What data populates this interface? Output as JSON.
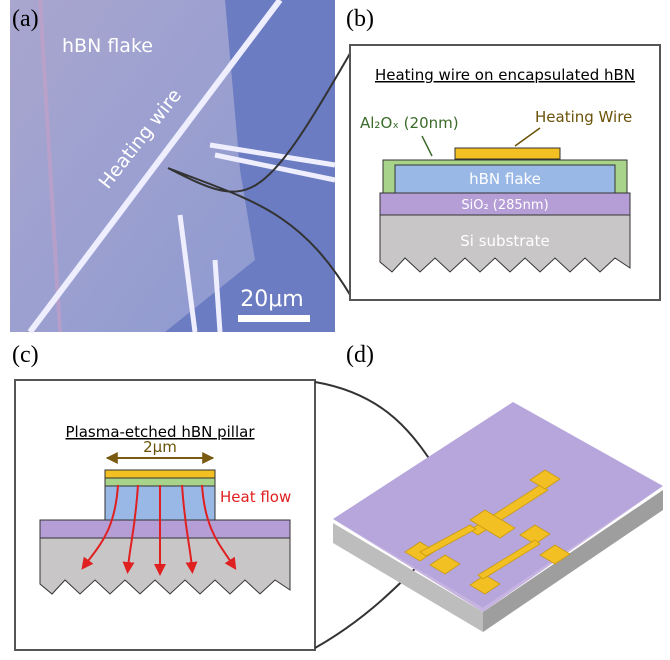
{
  "panels": [
    {
      "label": "(a)",
      "texts": {
        "flake": "hBN flake",
        "wire": "Heating wire",
        "scale": "20μm"
      }
    },
    {
      "label": "(b)",
      "title": "Heating wire on encapsulated hBN",
      "layers": {
        "alox": "Al₂Oₓ (20nm)",
        "wire": "Heating Wire",
        "hbn": "hBN flake",
        "sio2": "SiO₂ (285nm)",
        "si": "Si substrate"
      }
    },
    {
      "label": "(c)",
      "title": "Plasma-etched hBN pillar",
      "width": "2μm",
      "heat": "Heat flow"
    },
    {
      "label": "(d)"
    }
  ]
}
